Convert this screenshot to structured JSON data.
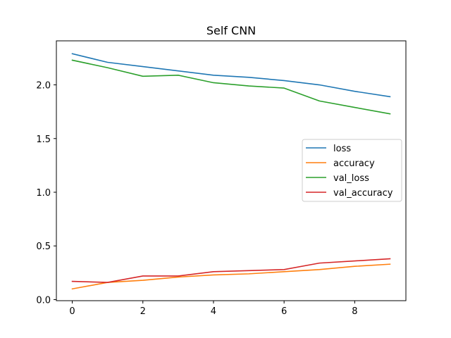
{
  "chart_data": {
    "type": "line",
    "title": "Self CNN",
    "xlabel": "",
    "ylabel": "",
    "x": [
      0,
      1,
      2,
      3,
      4,
      5,
      6,
      7,
      8,
      9
    ],
    "xlim": [
      -0.45,
      9.45
    ],
    "ylim": [
      -0.01,
      2.41
    ],
    "xticks": [
      0,
      2,
      4,
      6,
      8
    ],
    "yticks": [
      0.0,
      0.5,
      1.0,
      1.5,
      2.0
    ],
    "ytick_labels": [
      "0.0",
      "0.5",
      "1.0",
      "1.5",
      "2.0"
    ],
    "grid": false,
    "legend_position": "center-right",
    "series": [
      {
        "name": "loss",
        "color": "#1f77b4",
        "values": [
          2.29,
          2.21,
          2.17,
          2.13,
          2.09,
          2.07,
          2.04,
          2.0,
          1.94,
          1.89
        ]
      },
      {
        "name": "accuracy",
        "color": "#ff7f0e",
        "values": [
          0.1,
          0.16,
          0.18,
          0.21,
          0.23,
          0.24,
          0.26,
          0.28,
          0.31,
          0.33
        ]
      },
      {
        "name": "val_loss",
        "color": "#2ca02c",
        "values": [
          2.23,
          2.16,
          2.08,
          2.09,
          2.02,
          1.99,
          1.97,
          1.85,
          1.79,
          1.73
        ]
      },
      {
        "name": "val_accuracy",
        "color": "#d62728",
        "values": [
          0.17,
          0.16,
          0.22,
          0.22,
          0.26,
          0.27,
          0.28,
          0.34,
          0.36,
          0.38
        ]
      }
    ]
  }
}
